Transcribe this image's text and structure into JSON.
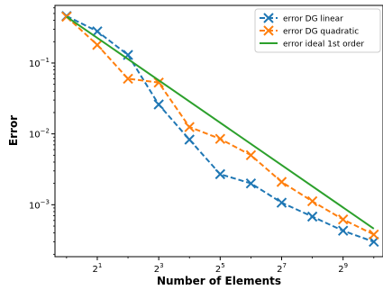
{
  "chart_data": {
    "type": "line",
    "xlabel": "Number of Elements",
    "ylabel": "Error",
    "x_scale": "log2",
    "y_scale": "log10",
    "xlim": [
      0.77,
      1260
    ],
    "ylim": [
      0.000185,
      0.65
    ],
    "x_ticks": [
      {
        "value": 2,
        "base": "2",
        "exp": "1"
      },
      {
        "value": 8,
        "base": "2",
        "exp": "3"
      },
      {
        "value": 32,
        "base": "2",
        "exp": "5"
      },
      {
        "value": 128,
        "base": "2",
        "exp": "7"
      },
      {
        "value": 512,
        "base": "2",
        "exp": "9"
      }
    ],
    "y_ticks": [
      {
        "value": 0.001,
        "base": "10",
        "exp": "−3"
      },
      {
        "value": 0.01,
        "base": "10",
        "exp": "−2"
      },
      {
        "value": 0.1,
        "base": "10",
        "exp": "−1"
      }
    ],
    "grid": false,
    "legend_position": "top-right",
    "series": [
      {
        "name": "error DG linear",
        "color": "#1f77b4",
        "linestyle": "dashed",
        "marker": "x",
        "x": [
          1,
          2,
          4,
          8,
          16,
          32,
          64,
          128,
          256,
          512,
          1024
        ],
        "y": [
          0.46,
          0.28,
          0.13,
          0.026,
          0.0083,
          0.0027,
          0.002,
          0.00107,
          0.00068,
          0.00043,
          0.0003
        ]
      },
      {
        "name": "error DG quadratic",
        "color": "#ff7f0e",
        "linestyle": "dashed",
        "marker": "x",
        "x": [
          1,
          2,
          4,
          8,
          16,
          32,
          64,
          128,
          256,
          512,
          1024
        ],
        "y": [
          0.45,
          0.18,
          0.06,
          0.053,
          0.0125,
          0.0085,
          0.005,
          0.0021,
          0.00112,
          0.00062,
          0.00038
        ]
      },
      {
        "name": "error ideal 1st order",
        "color": "#2ca02c",
        "linestyle": "solid",
        "marker": "none",
        "x": [
          1,
          1024
        ],
        "y": [
          0.45,
          0.00046
        ]
      }
    ]
  }
}
